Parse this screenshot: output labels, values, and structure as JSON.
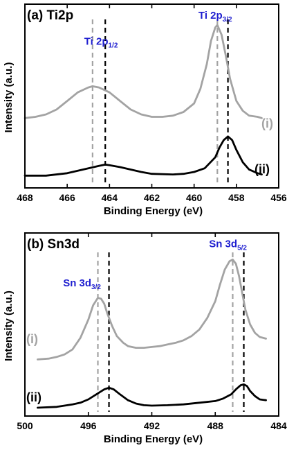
{
  "colors": {
    "series_i": "#a3a3a3",
    "series_ii": "#000000",
    "dash_i": "#a3a3a3",
    "dash_ii": "#000000",
    "peak_label": "#1f1fd0",
    "label_i": "#a3a3a3",
    "label_ii": "#000000"
  },
  "chart_data": [
    {
      "type": "line",
      "panel_label": "(a) Ti2p",
      "xlabel": "Binding Energy (eV)",
      "ylabel": "Intensity (a.u.)",
      "xlim": [
        468,
        456
      ],
      "x_reversed": true,
      "xticks": [
        468,
        466,
        464,
        462,
        460,
        458,
        456
      ],
      "xtick_labels": [
        "468",
        "466",
        "464",
        "462",
        "460",
        "458",
        "456"
      ],
      "grid": false,
      "legend": "inline labels at right",
      "peak_labels": [
        {
          "main": "Ti 2p",
          "sub": "1/2",
          "x": 464.4,
          "y": 1.12
        },
        {
          "main": "Ti 2p",
          "sub": "3/2",
          "x": 459.0,
          "y": 1.33
        }
      ],
      "reference_lines": [
        {
          "series": "i",
          "x": 464.8
        },
        {
          "series": "ii",
          "x": 464.2
        },
        {
          "series": "i",
          "x": 458.9
        },
        {
          "series": "ii",
          "x": 458.4
        }
      ],
      "series": [
        {
          "name": "(i)",
          "x": [
            468.0,
            467.5,
            467.0,
            466.5,
            466.0,
            465.5,
            465.0,
            464.8,
            464.5,
            464.0,
            463.5,
            463.0,
            462.5,
            462.0,
            461.5,
            461.0,
            460.5,
            460.0,
            459.7,
            459.4,
            459.2,
            459.0,
            458.9,
            458.7,
            458.5,
            458.3,
            458.0,
            457.7,
            457.4,
            457.0,
            456.8
          ],
          "y": [
            0.52,
            0.53,
            0.55,
            0.59,
            0.66,
            0.73,
            0.77,
            0.78,
            0.77,
            0.73,
            0.66,
            0.59,
            0.55,
            0.53,
            0.53,
            0.54,
            0.57,
            0.64,
            0.76,
            0.96,
            1.15,
            1.26,
            1.28,
            1.2,
            1.03,
            0.84,
            0.66,
            0.58,
            0.54,
            0.53,
            0.52
          ]
        },
        {
          "name": "(ii)",
          "x": [
            468.0,
            467.0,
            466.0,
            465.5,
            465.0,
            464.5,
            464.2,
            464.0,
            463.5,
            463.0,
            462.5,
            462.0,
            461.0,
            460.5,
            460.0,
            459.5,
            459.0,
            458.8,
            458.6,
            458.4,
            458.2,
            458.0,
            457.7,
            457.4,
            457.0,
            456.8
          ],
          "y": [
            0.05,
            0.05,
            0.07,
            0.09,
            0.11,
            0.13,
            0.14,
            0.135,
            0.12,
            0.1,
            0.08,
            0.065,
            0.06,
            0.065,
            0.08,
            0.11,
            0.2,
            0.28,
            0.34,
            0.37,
            0.34,
            0.26,
            0.16,
            0.1,
            0.07,
            0.06
          ]
        }
      ],
      "series_labels": [
        {
          "text": "(i)",
          "series": "i"
        },
        {
          "text": "(ii)",
          "series": "ii"
        }
      ]
    },
    {
      "type": "line",
      "panel_label": "(b) Sn3d",
      "xlabel": "Binding Energy (eV)",
      "ylabel": "Intensity (a.u.)",
      "xlim": [
        500,
        484
      ],
      "x_reversed": true,
      "xticks": [
        500,
        496,
        492,
        488,
        484
      ],
      "xtick_labels": [
        "500",
        "496",
        "492",
        "488",
        "484"
      ],
      "grid": false,
      "legend": "inline labels at left",
      "peak_labels": [
        {
          "main": "Sn 3d",
          "sub": "3/2",
          "x": 496.4,
          "y": 1.48
        },
        {
          "main": "Sn 3d",
          "sub": "5/2",
          "x": 487.2,
          "y": 1.95
        }
      ],
      "reference_lines": [
        {
          "series": "i",
          "x": 495.4
        },
        {
          "series": "ii",
          "x": 494.7
        },
        {
          "series": "i",
          "x": 486.9
        },
        {
          "series": "ii",
          "x": 486.2
        }
      ],
      "series": [
        {
          "name": "(i)",
          "x": [
            499.2,
            498.5,
            498.0,
            497.5,
            497.0,
            496.5,
            496.0,
            495.7,
            495.4,
            495.2,
            495.0,
            494.8,
            494.5,
            494.2,
            493.8,
            493.5,
            493.0,
            492.5,
            492.0,
            491.5,
            491.0,
            490.5,
            490.0,
            489.5,
            489.0,
            488.5,
            488.0,
            487.7,
            487.4,
            487.1,
            486.9,
            486.7,
            486.5,
            486.3,
            486.1,
            485.8,
            485.5,
            485.2,
            484.8
          ],
          "y": [
            0.6,
            0.61,
            0.63,
            0.66,
            0.72,
            0.86,
            1.08,
            1.25,
            1.34,
            1.33,
            1.27,
            1.15,
            1.0,
            0.88,
            0.8,
            0.76,
            0.74,
            0.74,
            0.75,
            0.76,
            0.78,
            0.8,
            0.83,
            0.88,
            0.96,
            1.1,
            1.3,
            1.5,
            1.68,
            1.78,
            1.8,
            1.75,
            1.6,
            1.4,
            1.2,
            1.02,
            0.92,
            0.87,
            0.85
          ]
        },
        {
          "name": "(ii)",
          "x": [
            499.2,
            498.0,
            497.0,
            496.5,
            496.0,
            495.5,
            495.0,
            494.7,
            494.4,
            494.0,
            493.5,
            493.0,
            492.5,
            492.0,
            491.0,
            490.0,
            489.0,
            488.0,
            487.5,
            487.0,
            486.7,
            486.4,
            486.2,
            486.0,
            485.8,
            485.5,
            485.2,
            484.8
          ],
          "y": [
            0.02,
            0.03,
            0.06,
            0.08,
            0.12,
            0.18,
            0.24,
            0.26,
            0.24,
            0.18,
            0.11,
            0.07,
            0.05,
            0.045,
            0.05,
            0.06,
            0.08,
            0.1,
            0.13,
            0.18,
            0.24,
            0.29,
            0.3,
            0.28,
            0.22,
            0.16,
            0.12,
            0.11
          ]
        }
      ],
      "series_labels": [
        {
          "text": "(i)",
          "series": "i"
        },
        {
          "text": "(ii)",
          "series": "ii"
        }
      ]
    }
  ]
}
